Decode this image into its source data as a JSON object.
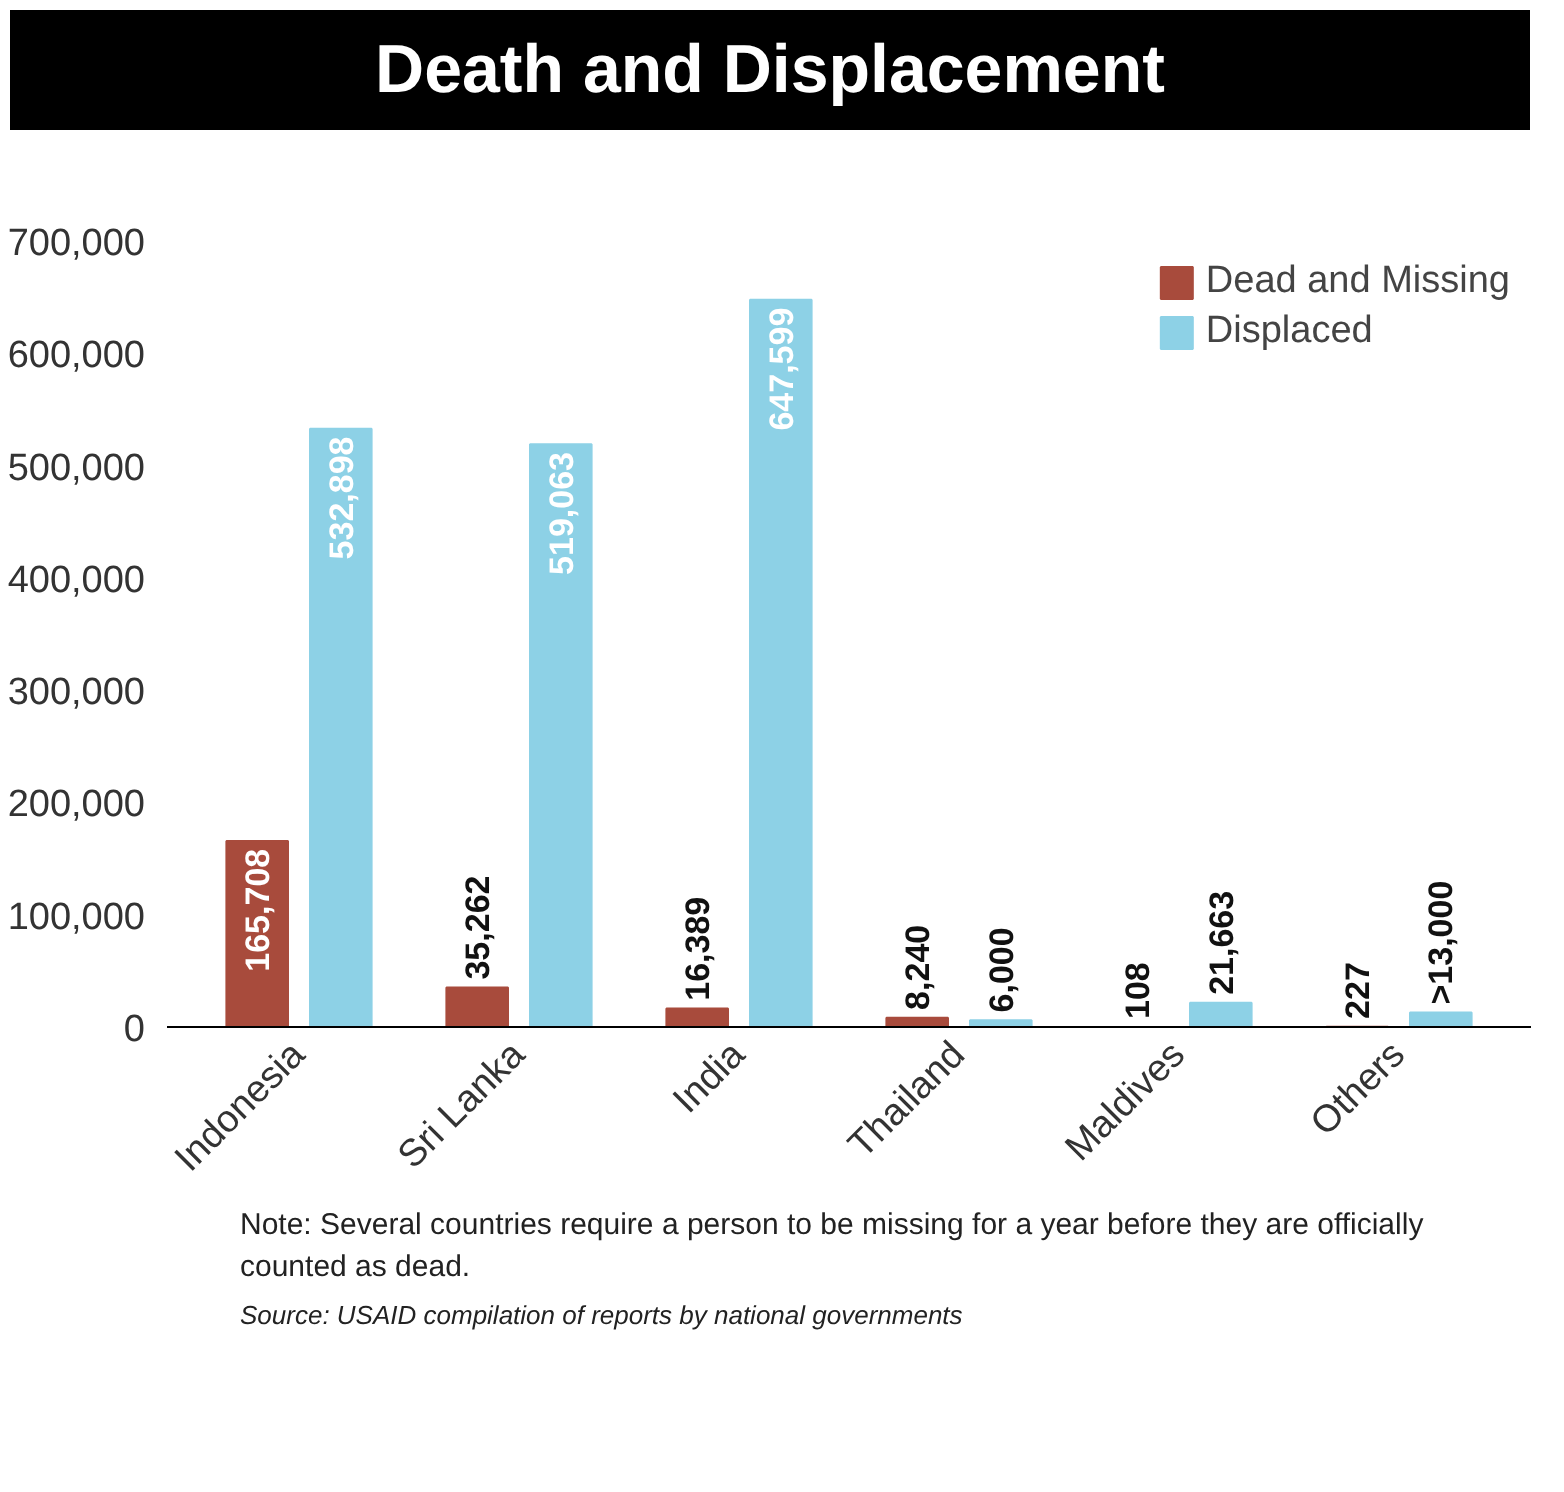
{
  "chart_data": {
    "type": "bar",
    "title": "Death and Displacement",
    "categories": [
      "Indonesia",
      "Sri Lanka",
      "India",
      "Thailand",
      "Maldives",
      "Others"
    ],
    "series": [
      {
        "name": "Dead and Missing",
        "color": "#a84b3c",
        "values": [
          165708,
          35262,
          16389,
          8240,
          108,
          227
        ],
        "value_labels": [
          "165,708",
          "35,262",
          "16,389",
          "8,240",
          "108",
          "227"
        ]
      },
      {
        "name": "Displaced",
        "color": "#8dd1e6",
        "values": [
          532898,
          519063,
          647599,
          6000,
          21663,
          13000
        ],
        "value_labels": [
          "532,898",
          "519,063",
          "647,599",
          "6,000",
          "21,663",
          ">13,000"
        ]
      }
    ],
    "ylim": [
      0,
      700000
    ],
    "yticks": [
      {
        "value": 0,
        "label": "0"
      },
      {
        "value": 100000,
        "label": "100,000"
      },
      {
        "value": 200000,
        "label": "200,000"
      },
      {
        "value": 300000,
        "label": "300,000"
      },
      {
        "value": 400000,
        "label": "400,000"
      },
      {
        "value": 500000,
        "label": "500,000"
      },
      {
        "value": 600000,
        "label": "600,000"
      },
      {
        "value": 700000,
        "label": "700,000"
      }
    ],
    "grid": false,
    "legend": "top right",
    "annotations": [
      "Note: Several countries require a person to be missing for a year before they are officially counted as dead.",
      "Source: USAID compilation of reports by national governments"
    ]
  }
}
